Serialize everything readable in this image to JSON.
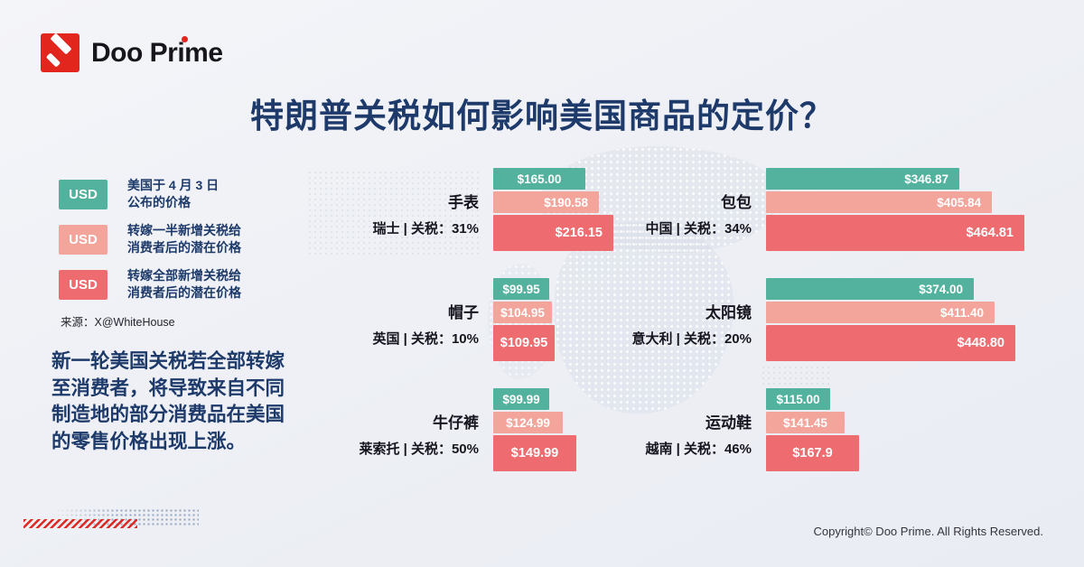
{
  "brand": {
    "logo_text": "Doo Prime",
    "accent_red": "#e2261e"
  },
  "title": "特朗普关税如何影响美国商品的定价？",
  "colors": {
    "navy": "#1d3a6a",
    "series_base": "#53b29d",
    "series_half": "#f3a59b",
    "series_full": "#ee6c6f"
  },
  "legend": {
    "items": [
      {
        "badge": "USD",
        "color": "#53b29d",
        "lines": [
          "美国于 4 月 3 日",
          "公布的价格"
        ]
      },
      {
        "badge": "USD",
        "color": "#f3a59b",
        "lines": [
          "转嫁一半新增关税给",
          "消费者后的潜在价格"
        ]
      },
      {
        "badge": "USD",
        "color": "#ee6c6f",
        "lines": [
          "转嫁全部新增关税给",
          "消费者后的潜在价格"
        ]
      }
    ],
    "source": "来源：X@WhiteHouse"
  },
  "note": {
    "lines": [
      "新一轮美国关税若全部转嫁",
      "至消费者，将导致来自不同",
      "制造地的部分消费品在美国",
      "的零售价格出现上涨。"
    ]
  },
  "chart_data": {
    "type": "bar",
    "unit": "USD",
    "title": "特朗普关税如何影响美国商品的定价？",
    "legend_position": "left",
    "orientation": "horizontal",
    "series": [
      {
        "name": "美国于 4 月 3 日公布的价格",
        "color": "#53b29d"
      },
      {
        "name": "转嫁一半新增关税给消费者后的潜在价格",
        "color": "#f3a59b"
      },
      {
        "name": "转嫁全部新增关税给消费者后的潜在价格",
        "color": "#ee6c6f"
      }
    ],
    "products": [
      {
        "name": "手表",
        "origin": "瑞士",
        "tariff": "31%",
        "meta_label": "瑞士 | 关税：31%",
        "values": [
          165.0,
          190.58,
          216.15
        ],
        "value_labels": [
          "$165.00",
          "$190.58",
          "$216.15"
        ]
      },
      {
        "name": "包包",
        "origin": "中国",
        "tariff": "34%",
        "meta_label": "中国 | 关税：34%",
        "values": [
          346.87,
          405.84,
          464.81
        ],
        "value_labels": [
          "$346.87",
          "$405.84",
          "$464.81"
        ]
      },
      {
        "name": "帽子",
        "origin": "英国",
        "tariff": "10%",
        "meta_label": "英国 | 关税：10%",
        "values": [
          99.95,
          104.95,
          109.95
        ],
        "value_labels": [
          "$99.95",
          "$104.95",
          "$109.95"
        ]
      },
      {
        "name": "太阳镜",
        "origin": "意大利",
        "tariff": "20%",
        "meta_label": "意大利 | 关税：20%",
        "values": [
          374.0,
          411.4,
          448.8
        ],
        "value_labels": [
          "$374.00",
          "$411.40",
          "$448.80"
        ]
      },
      {
        "name": "牛仔裤",
        "origin": "莱索托",
        "tariff": "50%",
        "meta_label": "莱索托 | 关税：50%",
        "values": [
          99.99,
          124.99,
          149.99
        ],
        "value_labels": [
          "$99.99",
          "$124.99",
          "$149.99"
        ]
      },
      {
        "name": "运动鞋",
        "origin": "越南",
        "tariff": "46%",
        "meta_label": "越南 | 关税：46%",
        "values": [
          115.0,
          141.45,
          167.9
        ],
        "value_labels": [
          "$115.00",
          "$141.45",
          "$167.9"
        ]
      }
    ]
  },
  "footer": {
    "copyright": "Copyright© Doo Prime. All Rights Reserved."
  }
}
